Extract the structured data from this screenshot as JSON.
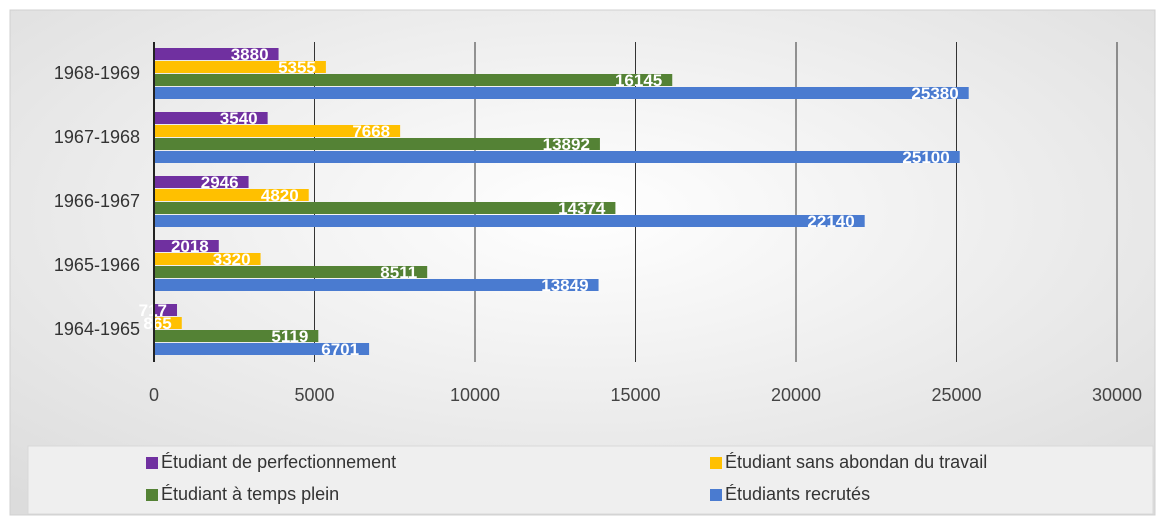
{
  "chart_data": {
    "type": "bar",
    "orientation": "horizontal",
    "categories": [
      "1964-1965",
      "1965-1966",
      "1966-1967",
      "1967-1968",
      "1968-1969"
    ],
    "series": [
      {
        "name": "Étudiant de perfectionnement",
        "color": "#7030a0",
        "values": [
          717,
          2018,
          2946,
          3540,
          3880
        ]
      },
      {
        "name": "Étudiant sans abondan du travail",
        "color": "#ffc000",
        "values": [
          865,
          3320,
          4820,
          7668,
          5355
        ]
      },
      {
        "name": "Étudiant à temps plein",
        "color": "#548235",
        "values": [
          5119,
          8511,
          14374,
          13892,
          16145
        ]
      },
      {
        "name": "Étudiants recrutés",
        "color": "#4a7bd0",
        "values": [
          6701,
          13849,
          22140,
          25100,
          25380
        ]
      }
    ],
    "xlim": [
      0,
      30000
    ],
    "xticks": [
      0,
      5000,
      10000,
      15000,
      20000,
      25000,
      30000
    ],
    "grid": true,
    "legend": "bottom"
  }
}
